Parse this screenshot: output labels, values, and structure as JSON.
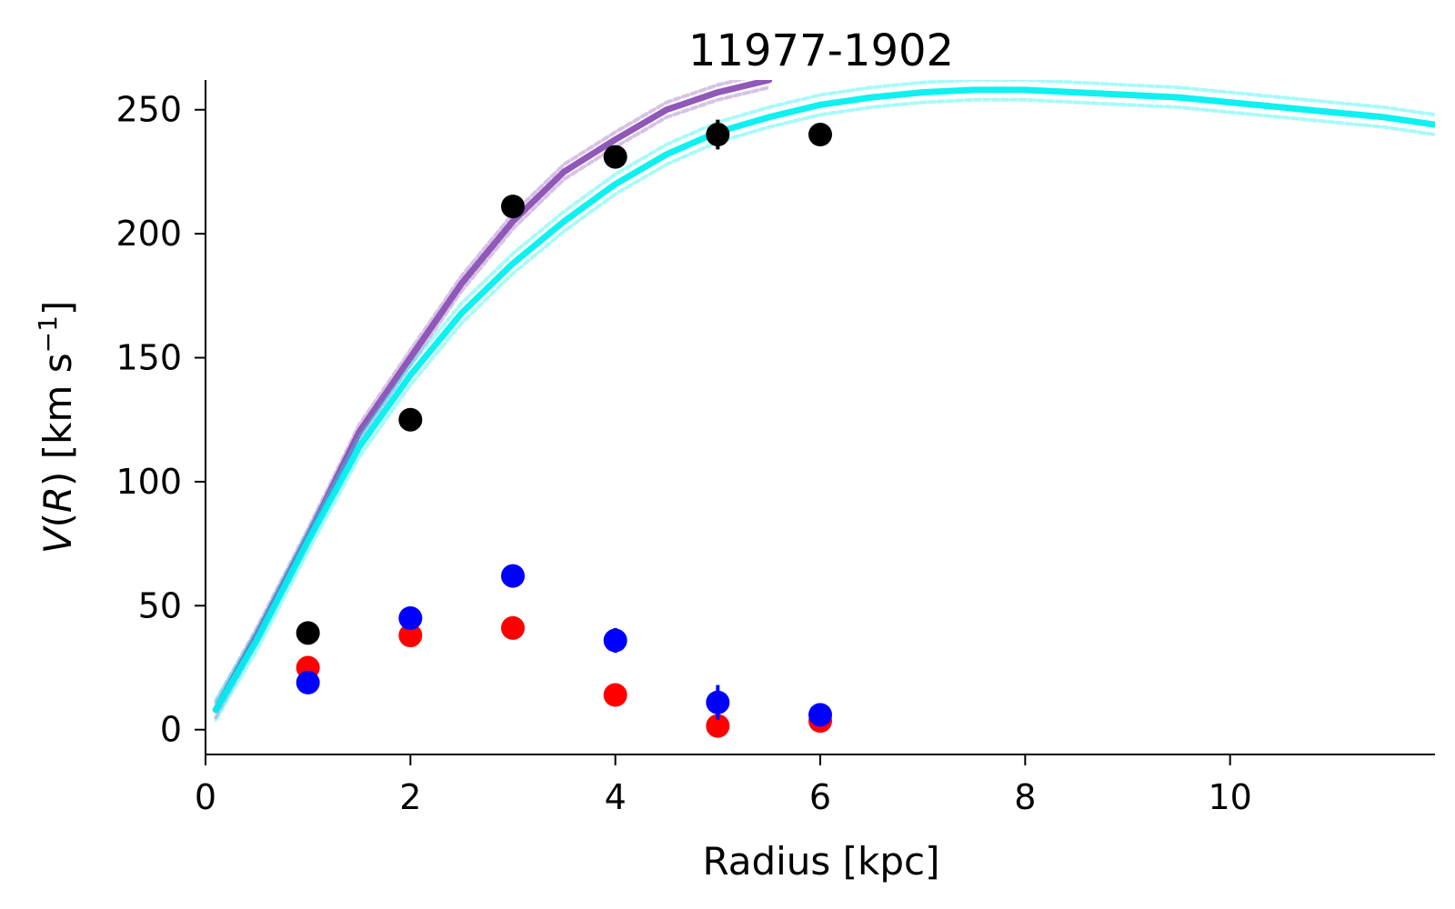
{
  "chart_data": {
    "type": "scatter",
    "title": "11977-1902",
    "xlabel": "Radius [kpc]",
    "ylabel": {
      "prefix": "V",
      "paren_open": "(",
      "var": "R",
      "paren_close": ") [km s",
      "sup": "−1",
      "suffix": "]"
    },
    "xlim": [
      0,
      12
    ],
    "ylim": [
      -10,
      262
    ],
    "xticks": [
      0,
      2,
      4,
      6,
      8,
      10
    ],
    "yticks": [
      0,
      50,
      100,
      150,
      200,
      250
    ],
    "grid": false,
    "colors": {
      "black_points": "#000000",
      "red_points": "#ff0000",
      "blue_points": "#0000ff",
      "purple_curve": "#8a4fb5",
      "cyan_curve": "#00f0f0"
    },
    "series": [
      {
        "kind": "points",
        "color_key": "black_points",
        "x": [
          1,
          2,
          3,
          4,
          5,
          6
        ],
        "y": [
          39,
          125,
          211,
          231,
          240,
          240
        ],
        "yerr": [
          0,
          0,
          0,
          0,
          6,
          0
        ]
      },
      {
        "kind": "points",
        "color_key": "red_points",
        "x": [
          1,
          2,
          3,
          4,
          5,
          6
        ],
        "y": [
          25,
          38,
          41,
          14,
          1.5,
          3.5
        ],
        "yerr": [
          0,
          0,
          0,
          0,
          0,
          0
        ]
      },
      {
        "kind": "points",
        "color_key": "blue_points",
        "x": [
          1,
          2,
          3,
          4,
          5,
          6
        ],
        "y": [
          19,
          45,
          62,
          36,
          11,
          6
        ],
        "yerr": [
          0,
          0,
          0,
          5,
          7,
          0
        ]
      },
      {
        "kind": "curve",
        "color_key": "purple_curve",
        "band_halfwidth": 3,
        "x": [
          0.1,
          0.5,
          1,
          1.5,
          2,
          2.5,
          3,
          3.5,
          4,
          4.5,
          5,
          5.5
        ],
        "y": [
          8,
          38,
          78,
          120,
          150,
          180,
          205,
          225,
          238,
          250,
          257,
          262
        ]
      },
      {
        "kind": "curve",
        "color_key": "cyan_curve",
        "band_halfwidth": 4,
        "x": [
          0.1,
          0.5,
          1,
          1.5,
          2,
          2.5,
          3,
          3.5,
          4,
          4.5,
          5,
          5.5,
          6,
          6.5,
          7,
          7.5,
          8,
          8.5,
          9,
          9.5,
          10,
          10.5,
          11,
          11.5,
          12
        ],
        "y": [
          8,
          36,
          76,
          114,
          143,
          168,
          188,
          205,
          220,
          232,
          241,
          247,
          252,
          255,
          257,
          258,
          258,
          257,
          256,
          255,
          253,
          251,
          249,
          247,
          244
        ]
      }
    ]
  }
}
